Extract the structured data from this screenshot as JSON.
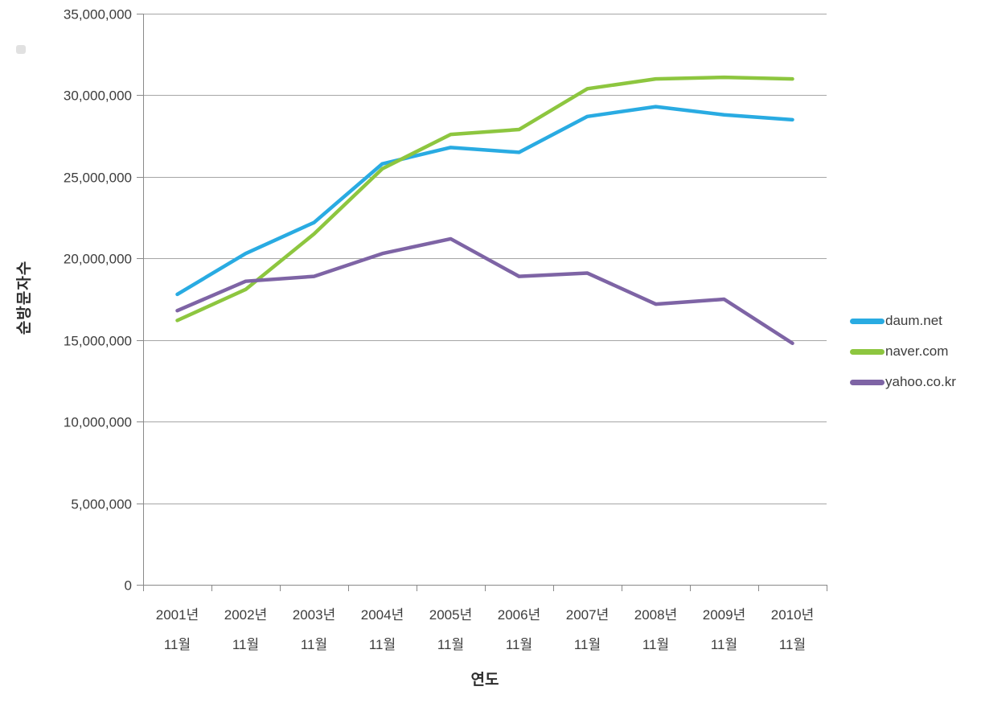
{
  "chart_data": {
    "type": "line",
    "title": "",
    "xlabel": "연도",
    "ylabel": "순방문자수",
    "grid": true,
    "legend_position": "right",
    "y_axis": {
      "min": 0,
      "max": 35000000,
      "step": 5000000,
      "tick_labels": [
        "0",
        "5,000,000",
        "10,000,000",
        "15,000,000",
        "20,000,000",
        "25,000,000",
        "30,000,000",
        "35,000,000"
      ]
    },
    "categories": [
      {
        "line1": "2001년",
        "line2": "11월"
      },
      {
        "line1": "2002년",
        "line2": "11월"
      },
      {
        "line1": "2003년",
        "line2": "11월"
      },
      {
        "line1": "2004년",
        "line2": "11월"
      },
      {
        "line1": "2005년",
        "line2": "11월"
      },
      {
        "line1": "2006년",
        "line2": "11월"
      },
      {
        "line1": "2007년",
        "line2": "11월"
      },
      {
        "line1": "2008년",
        "line2": "11월"
      },
      {
        "line1": "2009년",
        "line2": "11월"
      },
      {
        "line1": "2010년",
        "line2": "11월"
      }
    ],
    "series": [
      {
        "name": "daum.net",
        "color": "#29ABE2",
        "values": [
          17800000,
          20300000,
          22200000,
          25800000,
          26800000,
          26500000,
          28700000,
          29300000,
          28800000,
          28500000
        ]
      },
      {
        "name": "naver.com",
        "color": "#8DC63F",
        "values": [
          16200000,
          18100000,
          21500000,
          25500000,
          27600000,
          27900000,
          30400000,
          31000000,
          31100000,
          31000000
        ]
      },
      {
        "name": "yahoo.co.kr",
        "color": "#7E64A5",
        "values": [
          16800000,
          18600000,
          18900000,
          20300000,
          21200000,
          18900000,
          19100000,
          17200000,
          17500000,
          14800000
        ]
      }
    ]
  },
  "colors": {
    "axis": "#898989",
    "gridline": "#A6A6A6",
    "tick_text": "#3d3d3d"
  }
}
